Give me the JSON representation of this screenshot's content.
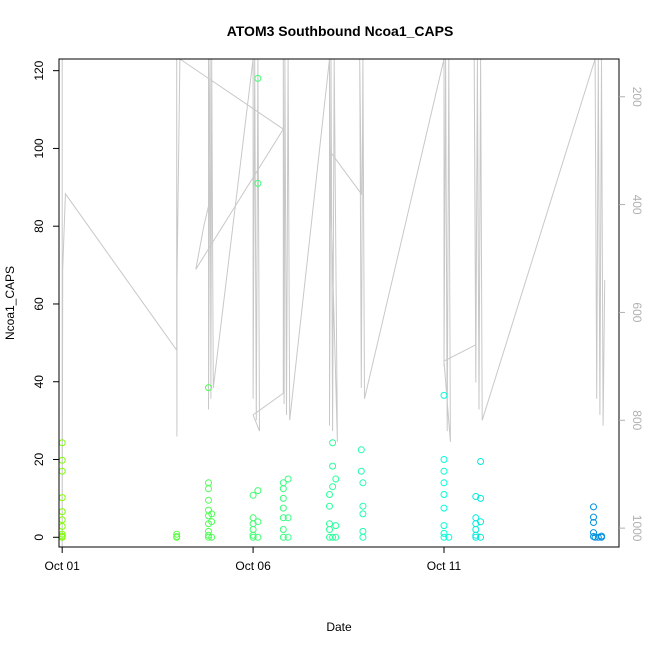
{
  "chart_data": {
    "type": "scatter",
    "title": "ATOM3 Southbound Ncoa1_CAPS",
    "xlabel": "Date",
    "ylabel": "Ncoa1_CAPS",
    "x_axis": {
      "unit": "days",
      "range": [
        "2023-09-30T22:00",
        "2023-10-15T14:00"
      ],
      "ticks": [
        {
          "value": "2023-10-01",
          "label": "Oct 01"
        },
        {
          "value": "2023-10-06",
          "label": "Oct 06"
        },
        {
          "value": "2023-10-11",
          "label": "Oct 11"
        }
      ]
    },
    "y_axis": {
      "range": [
        -2.5,
        123
      ],
      "ticks": [
        0,
        20,
        40,
        60,
        80,
        100,
        120
      ]
    },
    "y2_axis": {
      "range": [
        1035,
        130
      ],
      "reversed": true,
      "ticks": [
        200,
        400,
        600,
        800,
        1000
      ],
      "color": "#b0b0b0"
    },
    "depth_trace": {
      "color": "#c8c8c8",
      "points": [
        [
          "2023-10-01T00:00",
          130
        ],
        [
          "2023-10-01T00:00",
          1035
        ],
        [
          "2023-10-01T00:10",
          830
        ],
        [
          "2023-10-01T00:20",
          520
        ],
        [
          "2023-10-01T02:00",
          380
        ],
        [
          "2023-10-04T00:00",
          670
        ],
        [
          "2023-10-04T00:00",
          130
        ],
        [
          "2023-10-04T00:05",
          830
        ],
        [
          "2023-10-04T00:10",
          540
        ],
        [
          "2023-10-04T02:00",
          130
        ],
        [
          "2023-10-06T19:00",
          260
        ],
        [
          "2023-10-04T12:00",
          520
        ],
        [
          "2023-10-04T17:00",
          440
        ],
        [
          "2023-10-04T21:00",
          390
        ],
        [
          "2023-10-04T20:00",
          130
        ],
        [
          "2023-10-04T20:00",
          780
        ],
        [
          "2023-10-04T21:00",
          130
        ],
        [
          "2023-10-04T21:30",
          760
        ],
        [
          "2023-10-04T22:00",
          130
        ],
        [
          "2023-10-04T23:00",
          740
        ],
        [
          "2023-10-06T00:00",
          130
        ],
        [
          "2023-10-06T00:00",
          760
        ],
        [
          "2023-10-06T01:00",
          130
        ],
        [
          "2023-10-06T02:00",
          800
        ],
        [
          "2023-10-06T03:00",
          130
        ],
        [
          "2023-10-06T04:00",
          820
        ],
        [
          "2023-10-06T00:00",
          790
        ],
        [
          "2023-10-06T19:00",
          750
        ],
        [
          "2023-10-06T19:00",
          130
        ],
        [
          "2023-10-06T19:30",
          770
        ],
        [
          "2023-10-06T20:00",
          130
        ],
        [
          "2023-10-06T21:00",
          790
        ],
        [
          "2023-10-06T22:00",
          130
        ],
        [
          "2023-10-06T23:00",
          800
        ],
        [
          "2023-10-08T00:00",
          130
        ],
        [
          "2023-10-08T00:00",
          810
        ],
        [
          "2023-10-08T01:00",
          130
        ],
        [
          "2023-10-08T02:00",
          820
        ],
        [
          "2023-10-08T03:00",
          130
        ],
        [
          "2023-10-08T05:00",
          840
        ],
        [
          "2023-10-08T00:00",
          300
        ],
        [
          "2023-10-08T20:00",
          380
        ],
        [
          "2023-10-08T19:00",
          130
        ],
        [
          "2023-10-08T20:00",
          740
        ],
        [
          "2023-10-08T21:00",
          130
        ],
        [
          "2023-10-08T22:00",
          760
        ],
        [
          "2023-10-11T00:00",
          130
        ],
        [
          "2023-10-11T00:00",
          700
        ],
        [
          "2023-10-11T01:00",
          130
        ],
        [
          "2023-10-11T02:00",
          820
        ],
        [
          "2023-10-11T03:00",
          130
        ],
        [
          "2023-10-11T04:00",
          840
        ],
        [
          "2023-10-11T00:00",
          690
        ],
        [
          "2023-10-11T20:00",
          660
        ],
        [
          "2023-10-11T19:00",
          130
        ],
        [
          "2023-10-11T20:00",
          730
        ],
        [
          "2023-10-11T21:00",
          130
        ],
        [
          "2023-10-11T22:00",
          780
        ],
        [
          "2023-10-11T23:00",
          130
        ],
        [
          "2023-10-12T00:00",
          800
        ],
        [
          "2023-10-14T23:00",
          130
        ],
        [
          "2023-10-15T00:00",
          760
        ],
        [
          "2023-10-15T01:00",
          130
        ],
        [
          "2023-10-15T02:00",
          790
        ],
        [
          "2023-10-15T03:00",
          130
        ],
        [
          "2023-10-15T04:00",
          810
        ],
        [
          "2023-10-15T05:00",
          540
        ]
      ]
    },
    "series": [
      {
        "color_start": "#7fff00",
        "color_end": "#0080e0",
        "points": [
          [
            "2023-10-01T00:00",
            24.3
          ],
          [
            "2023-10-01T00:00",
            19.8
          ],
          [
            "2023-10-01T00:00",
            17.0
          ],
          [
            "2023-10-01T00:00",
            10.2
          ],
          [
            "2023-10-01T00:00",
            6.6
          ],
          [
            "2023-10-01T00:00",
            4.5
          ],
          [
            "2023-10-01T00:00",
            2.8
          ],
          [
            "2023-10-01T00:00",
            0.8
          ],
          [
            "2023-10-01T00:00",
            0.3
          ],
          [
            "2023-10-01T00:00",
            0.0
          ],
          [
            "2023-10-04T00:00",
            0.8
          ],
          [
            "2023-10-04T00:00",
            0.2
          ],
          [
            "2023-10-04T00:00",
            0.0
          ],
          [
            "2023-10-04T20:00",
            38.5
          ],
          [
            "2023-10-04T20:00",
            14.0
          ],
          [
            "2023-10-04T20:00",
            12.5
          ],
          [
            "2023-10-04T20:00",
            9.5
          ],
          [
            "2023-10-04T20:00",
            7.0
          ],
          [
            "2023-10-04T20:00",
            5.5
          ],
          [
            "2023-10-04T20:00",
            3.5
          ],
          [
            "2023-10-04T20:00",
            1.5
          ],
          [
            "2023-10-04T20:00",
            0.5
          ],
          [
            "2023-10-04T20:00",
            0.0
          ],
          [
            "2023-10-04T22:00",
            6.0
          ],
          [
            "2023-10-04T22:00",
            4.0
          ],
          [
            "2023-10-04T22:00",
            0.0
          ],
          [
            "2023-10-06T00:00",
            10.8
          ],
          [
            "2023-10-06T00:00",
            5.0
          ],
          [
            "2023-10-06T00:00",
            3.5
          ],
          [
            "2023-10-06T00:00",
            2.0
          ],
          [
            "2023-10-06T00:00",
            0.5
          ],
          [
            "2023-10-06T00:00",
            0.0
          ],
          [
            "2023-10-06T03:00",
            118.0
          ],
          [
            "2023-10-06T03:00",
            91.0
          ],
          [
            "2023-10-06T03:00",
            12.0
          ],
          [
            "2023-10-06T03:00",
            4.0
          ],
          [
            "2023-10-06T03:00",
            0.0
          ],
          [
            "2023-10-06T19:00",
            14.0
          ],
          [
            "2023-10-06T19:00",
            12.5
          ],
          [
            "2023-10-06T19:00",
            10.0
          ],
          [
            "2023-10-06T19:00",
            7.5
          ],
          [
            "2023-10-06T19:00",
            5.0
          ],
          [
            "2023-10-06T19:00",
            2.0
          ],
          [
            "2023-10-06T19:00",
            0.0
          ],
          [
            "2023-10-06T22:00",
            15.0
          ],
          [
            "2023-10-06T22:00",
            5.0
          ],
          [
            "2023-10-06T22:00",
            0.0
          ],
          [
            "2023-10-08T00:00",
            11.0
          ],
          [
            "2023-10-08T00:00",
            8.0
          ],
          [
            "2023-10-08T00:00",
            3.5
          ],
          [
            "2023-10-08T00:00",
            2.0
          ],
          [
            "2023-10-08T00:00",
            0.0
          ],
          [
            "2023-10-08T02:00",
            24.3
          ],
          [
            "2023-10-08T02:00",
            18.3
          ],
          [
            "2023-10-08T02:00",
            13.0
          ],
          [
            "2023-10-08T02:00",
            0.0
          ],
          [
            "2023-10-08T04:00",
            15.0
          ],
          [
            "2023-10-08T04:00",
            3.0
          ],
          [
            "2023-10-08T04:00",
            0.0
          ],
          [
            "2023-10-08T20:00",
            22.5
          ],
          [
            "2023-10-08T20:00",
            17.0
          ],
          [
            "2023-10-08T21:00",
            14.0
          ],
          [
            "2023-10-08T21:00",
            8.0
          ],
          [
            "2023-10-08T21:00",
            6.0
          ],
          [
            "2023-10-08T21:00",
            1.5
          ],
          [
            "2023-10-08T21:00",
            0.0
          ],
          [
            "2023-10-11T00:00",
            36.5
          ],
          [
            "2023-10-11T00:00",
            20.0
          ],
          [
            "2023-10-11T00:00",
            17.0
          ],
          [
            "2023-10-11T00:00",
            14.0
          ],
          [
            "2023-10-11T00:00",
            11.0
          ],
          [
            "2023-10-11T00:00",
            7.5
          ],
          [
            "2023-10-11T00:00",
            3.0
          ],
          [
            "2023-10-11T00:00",
            1.0
          ],
          [
            "2023-10-11T00:00",
            0.0
          ],
          [
            "2023-10-11T03:00",
            0.0
          ],
          [
            "2023-10-11T20:00",
            10.5
          ],
          [
            "2023-10-11T20:00",
            5.0
          ],
          [
            "2023-10-11T20:00",
            3.5
          ],
          [
            "2023-10-11T20:00",
            2.0
          ],
          [
            "2023-10-11T20:00",
            0.5
          ],
          [
            "2023-10-11T20:00",
            0.0
          ],
          [
            "2023-10-11T23:00",
            19.5
          ],
          [
            "2023-10-11T23:00",
            10.0
          ],
          [
            "2023-10-11T23:00",
            4.0
          ],
          [
            "2023-10-11T23:00",
            0.0
          ],
          [
            "2023-10-14T22:00",
            7.8
          ],
          [
            "2023-10-14T22:00",
            5.2
          ],
          [
            "2023-10-14T22:00",
            3.8
          ],
          [
            "2023-10-14T22:00",
            1.2
          ],
          [
            "2023-10-14T22:00",
            0.2
          ],
          [
            "2023-10-14T23:00",
            0.0
          ],
          [
            "2023-10-15T01:00",
            0.0
          ],
          [
            "2023-10-15T03:00",
            0.3
          ],
          [
            "2023-10-15T03:00",
            0.0
          ]
        ]
      }
    ]
  }
}
